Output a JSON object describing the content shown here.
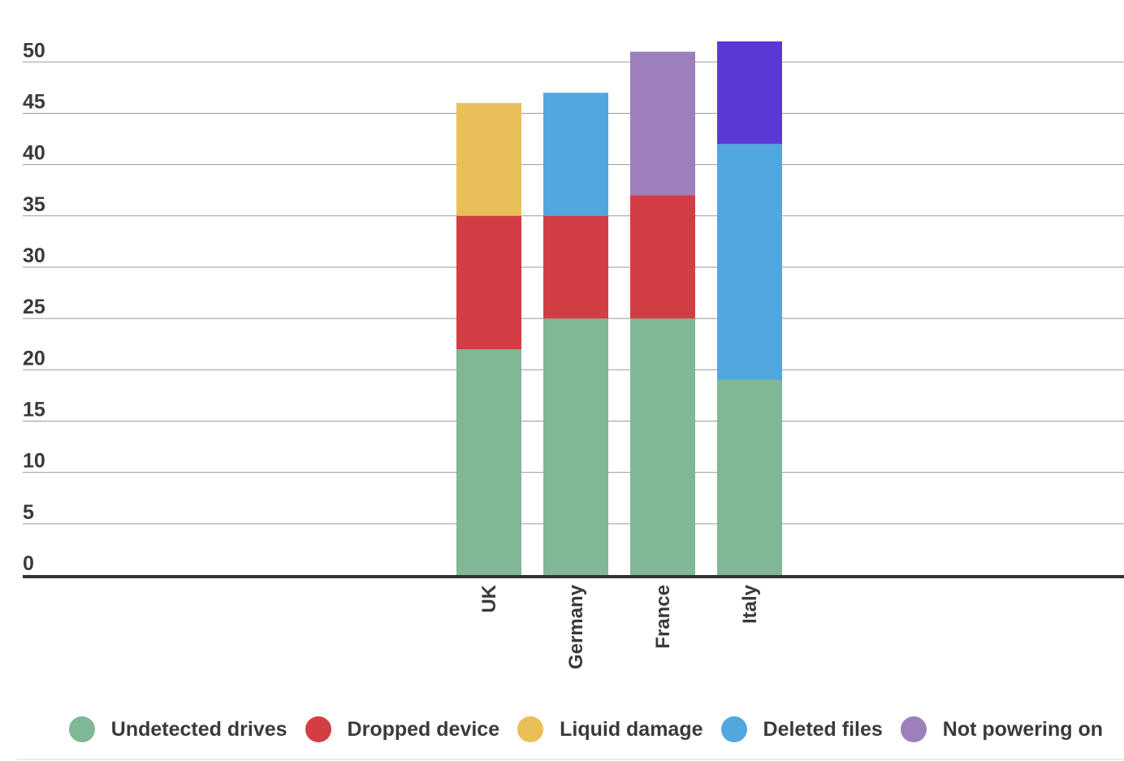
{
  "chart_data": {
    "type": "bar",
    "stacked": true,
    "categories": [
      "UK",
      "Germany",
      "France",
      "Italy"
    ],
    "series": [
      {
        "name": "Undetected drives",
        "color": "#80b795",
        "values": [
          22,
          25,
          25,
          19
        ]
      },
      {
        "name": "Dropped device",
        "color": "#d33d44",
        "values": [
          13,
          10,
          12,
          null
        ]
      },
      {
        "name": "Liquid damage",
        "color": "#e9bf58",
        "values": [
          11,
          null,
          null,
          null
        ]
      },
      {
        "name": "Deleted files",
        "color": "#52a8de",
        "values": [
          null,
          12,
          null,
          23
        ]
      },
      {
        "name": "Not powering on",
        "color": "#9c7fbb",
        "values": [
          null,
          null,
          14,
          null
        ]
      },
      {
        "name": "",
        "color": "#5b38d6",
        "values": [
          null,
          null,
          null,
          10
        ]
      }
    ],
    "yticks": [
      "0",
      "5",
      "10",
      "15",
      "20",
      "25",
      "30",
      "35",
      "40",
      "45",
      "50"
    ],
    "ylim": [
      0,
      52
    ],
    "grid": true,
    "legend_position": "bottom",
    "title": "",
    "xlabel": "",
    "ylabel": ""
  },
  "legend": [
    {
      "label": "Undetected drives",
      "color": "#80b795"
    },
    {
      "label": "Dropped device",
      "color": "#d33d44"
    },
    {
      "label": "Liquid damage",
      "color": "#e9bf58"
    },
    {
      "label": "Deleted files",
      "color": "#52a8de"
    },
    {
      "label": "Not powering on",
      "color": "#9c7fbb"
    }
  ]
}
